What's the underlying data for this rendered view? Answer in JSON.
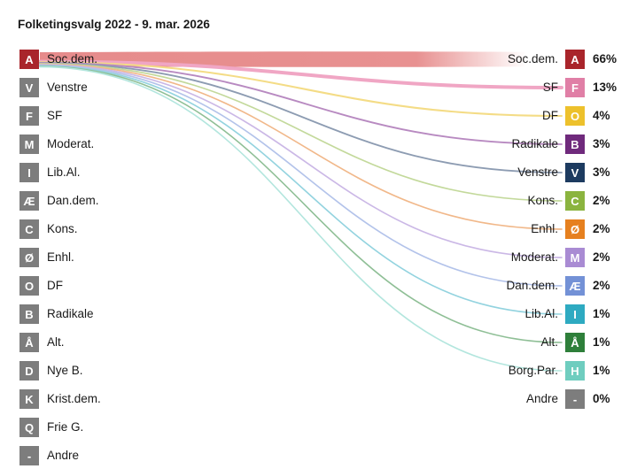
{
  "title": "Folketingsvalg 2022 - 9. mar. 2026",
  "chart_data": {
    "type": "sankey",
    "title": "Folketingsvalg 2022 - 9. mar. 2026",
    "source_label": "Soc.dem.",
    "left": [
      {
        "letter": "A",
        "name": "Soc.dem.",
        "color": "#a9252b"
      },
      {
        "letter": "V",
        "name": "Venstre",
        "color": "#7d7d7d"
      },
      {
        "letter": "F",
        "name": "SF",
        "color": "#7d7d7d"
      },
      {
        "letter": "M",
        "name": "Moderat.",
        "color": "#7d7d7d"
      },
      {
        "letter": "I",
        "name": "Lib.Al.",
        "color": "#7d7d7d"
      },
      {
        "letter": "Æ",
        "name": "Dan.dem.",
        "color": "#7d7d7d"
      },
      {
        "letter": "C",
        "name": "Kons.",
        "color": "#7d7d7d"
      },
      {
        "letter": "Ø",
        "name": "Enhl.",
        "color": "#7d7d7d"
      },
      {
        "letter": "O",
        "name": "DF",
        "color": "#7d7d7d"
      },
      {
        "letter": "B",
        "name": "Radikale",
        "color": "#7d7d7d"
      },
      {
        "letter": "Å",
        "name": "Alt.",
        "color": "#7d7d7d"
      },
      {
        "letter": "D",
        "name": "Nye B.",
        "color": "#7d7d7d"
      },
      {
        "letter": "K",
        "name": "Krist.dem.",
        "color": "#7d7d7d"
      },
      {
        "letter": "Q",
        "name": "Frie G.",
        "color": "#7d7d7d"
      },
      {
        "letter": "-",
        "name": "Andre",
        "color": "#7d7d7d"
      }
    ],
    "right": [
      {
        "letter": "A",
        "name": "Soc.dem.",
        "pct": "66%",
        "value": 66,
        "color": "#a9252b",
        "flow_color": "#e58585"
      },
      {
        "letter": "F",
        "name": "SF",
        "pct": "13%",
        "value": 13,
        "color": "#e07fa6",
        "flow_color": "#f0a6c4"
      },
      {
        "letter": "O",
        "name": "DF",
        "pct": "4%",
        "value": 4,
        "color": "#edc12c",
        "flow_color": "#f4dc86"
      },
      {
        "letter": "B",
        "name": "Radikale",
        "pct": "3%",
        "value": 3,
        "color": "#6f2a7c",
        "flow_color": "#b88ac1"
      },
      {
        "letter": "V",
        "name": "Venstre",
        "pct": "3%",
        "value": 3,
        "color": "#1d3b60",
        "flow_color": "#8d9cb2"
      },
      {
        "letter": "C",
        "name": "Kons.",
        "pct": "2%",
        "value": 2,
        "color": "#8bb43f",
        "flow_color": "#c3d99b"
      },
      {
        "letter": "Ø",
        "name": "Enhl.",
        "pct": "2%",
        "value": 2,
        "color": "#e6801f",
        "flow_color": "#f1b88a"
      },
      {
        "letter": "M",
        "name": "Moderat.",
        "pct": "2%",
        "value": 2,
        "color": "#a98bd3",
        "flow_color": "#cbb8e6"
      },
      {
        "letter": "Æ",
        "name": "Dan.dem.",
        "pct": "2%",
        "value": 2,
        "color": "#7391d6",
        "flow_color": "#b3c3ea"
      },
      {
        "letter": "I",
        "name": "Lib.Al.",
        "pct": "1%",
        "value": 1,
        "color": "#2eaac1",
        "flow_color": "#93d3df"
      },
      {
        "letter": "Å",
        "name": "Alt.",
        "pct": "1%",
        "value": 1,
        "color": "#2e7f3a",
        "flow_color": "#8fbf96"
      },
      {
        "letter": "H",
        "name": "Borg.Par.",
        "pct": "1%",
        "value": 1,
        "color": "#6fcdbf",
        "flow_color": "#b3e6de"
      },
      {
        "letter": "-",
        "name": "Andre",
        "pct": "0%",
        "value": 0,
        "color": "#7d7d7d",
        "flow_color": "#cfcfcf"
      }
    ]
  }
}
